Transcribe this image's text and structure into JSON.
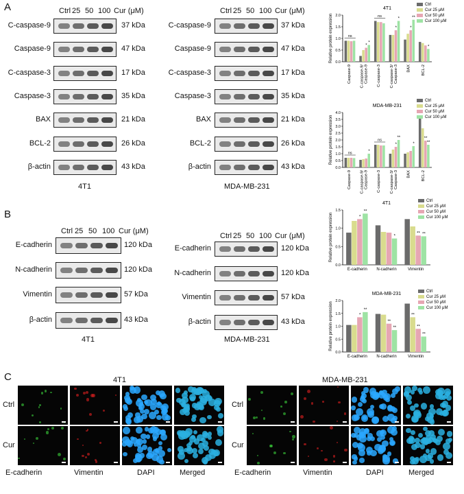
{
  "panels": {
    "A": "A",
    "B": "B",
    "C": "C"
  },
  "A": {
    "lanes_label": [
      "Ctrl",
      "25",
      "50",
      "100"
    ],
    "conc_label": "Cur (μM)",
    "left": {
      "cell_line": "4T1",
      "rows": [
        {
          "protein": "C-caspase-9",
          "kda": "37 kDa"
        },
        {
          "protein": "Caspase-9",
          "kda": "47 kDa"
        },
        {
          "protein": "C-caspase-3",
          "kda": "17 kDa"
        },
        {
          "protein": "Caspase-3",
          "kda": "35 kDa"
        },
        {
          "protein": "BAX",
          "kda": "21 kDa"
        },
        {
          "protein": "BCL-2",
          "kda": "26 kDa"
        },
        {
          "protein": "β-actin",
          "kda": "43 kDa"
        }
      ]
    },
    "right": {
      "cell_line": "MDA-MB-231",
      "rows": [
        {
          "protein": "C-caspase-9",
          "kda": "37 kDa"
        },
        {
          "protein": "Caspase-9",
          "kda": "47 kDa"
        },
        {
          "protein": "C-caspase-3",
          "kda": "17 kDa"
        },
        {
          "protein": "Caspase-3",
          "kda": "35 kDa"
        },
        {
          "protein": "BAX",
          "kda": "21 kDa"
        },
        {
          "protein": "BCL-2",
          "kda": "26 kDa"
        },
        {
          "protein": "β-actin",
          "kda": "43 kDa"
        }
      ]
    }
  },
  "B": {
    "lanes_label": [
      "Ctrl",
      "25",
      "50",
      "100"
    ],
    "conc_label": "Cur (μM)",
    "left": {
      "cell_line": "4T1",
      "rows": [
        {
          "protein": "E-cadherin",
          "kda": "120 kDa"
        },
        {
          "protein": "N-cadherin",
          "kda": "120 kDa"
        },
        {
          "protein": "Vimentin",
          "kda": "57 kDa"
        },
        {
          "protein": "β-actin",
          "kda": "43 kDa"
        }
      ]
    },
    "right": {
      "cell_line": "MDA-MB-231",
      "rows": [
        {
          "protein": "E-cadherin",
          "kda": "120 kDa"
        },
        {
          "protein": "N-cadherin",
          "kda": "120 kDa"
        },
        {
          "protein": "Vimentin",
          "kda": "57 kDa"
        },
        {
          "protein": "β-actin",
          "kda": "43 kDa"
        }
      ]
    }
  },
  "C": {
    "left_title": "4T1",
    "right_title": "MDA-MB-231",
    "row_labels": [
      "Ctrl",
      "Cur"
    ],
    "col_labels": [
      "E-cadherin",
      "Vimentin",
      "DAPI",
      "Merged"
    ]
  },
  "colors": {
    "ctrl": "#6b6b6b",
    "cur25": "#d9dc8e",
    "cur50": "#e6a6b3",
    "cur100": "#9ee3a4"
  },
  "chart_data": [
    {
      "type": "bar",
      "title": "4T1",
      "ylabel": "Relative protein expression",
      "ylim": [
        0,
        2.0
      ],
      "yticks": [
        "0.0",
        "0.5",
        "1.0",
        "1.5",
        "2.0"
      ],
      "categories": [
        "Caspase-9",
        "C-caspase-9/ Caspase-9",
        "C-caspase-3",
        "C-caspase-3/ Caspase-3",
        "BAX",
        "BCL-2"
      ],
      "legend": [
        "Ctrl",
        "Cur 25 μM",
        "Cur 50 μM",
        "Cur 100 μM"
      ],
      "series": [
        {
          "name": "Ctrl",
          "values": [
            0.9,
            0.25,
            1.75,
            1.15,
            0.95,
            0.85
          ]
        },
        {
          "name": "Cur 25 μM",
          "values": [
            0.9,
            0.5,
            1.7,
            1.15,
            1.2,
            0.8
          ]
        },
        {
          "name": "Cur 50 μM",
          "values": [
            0.88,
            0.6,
            1.7,
            1.35,
            1.35,
            0.7
          ]
        },
        {
          "name": "Cur 100 μM",
          "values": [
            0.9,
            0.72,
            1.65,
            1.75,
            1.8,
            0.55
          ]
        }
      ],
      "annotations": [
        {
          "category": 0,
          "text": "ns"
        },
        {
          "category": 1,
          "series": 2,
          "text": "*"
        },
        {
          "category": 1,
          "series": 3,
          "text": "*"
        },
        {
          "category": 2,
          "text": "ns"
        },
        {
          "category": 3,
          "series": 2,
          "text": "*"
        },
        {
          "category": 3,
          "series": 3,
          "text": "*"
        },
        {
          "category": 4,
          "series": 2,
          "text": "*"
        },
        {
          "category": 4,
          "series": 3,
          "text": "**"
        },
        {
          "category": 5,
          "series": 3,
          "text": "*"
        }
      ]
    },
    {
      "type": "bar",
      "title": "MDA-MB-231",
      "ylabel": "Relative protein expression",
      "ylim": [
        0,
        4.0
      ],
      "yticks": [
        "0.0",
        "0.5",
        "1.0",
        "1.5",
        "2.0",
        "2.5",
        "3.0",
        "3.5",
        "4.0"
      ],
      "categories": [
        "Caspase-9",
        "C-caspase-9/ Caspase-9",
        "C-caspase-3",
        "C-caspase-3/ Caspase-3",
        "BAX",
        "BCL-2"
      ],
      "legend": [
        "Ctrl",
        "Cur 25 μM",
        "Cur 50 μM",
        "Cur 100 μM"
      ],
      "series": [
        {
          "name": "Ctrl",
          "values": [
            0.7,
            0.55,
            1.65,
            1.0,
            1.0,
            3.8
          ]
        },
        {
          "name": "Cur 25 μM",
          "values": [
            0.7,
            0.6,
            1.65,
            1.3,
            1.1,
            2.85
          ]
        },
        {
          "name": "Cur 50 μM",
          "values": [
            0.7,
            0.65,
            1.6,
            1.5,
            1.2,
            1.95
          ]
        },
        {
          "name": "Cur 100 μM",
          "values": [
            0.68,
            1.0,
            1.6,
            2.0,
            1.55,
            1.65
          ]
        }
      ],
      "annotations": [
        {
          "category": 0,
          "text": "ns"
        },
        {
          "category": 1,
          "series": 3,
          "text": "*"
        },
        {
          "category": 2,
          "text": "ns"
        },
        {
          "category": 3,
          "series": 2,
          "text": "*"
        },
        {
          "category": 3,
          "series": 3,
          "text": "**"
        },
        {
          "category": 4,
          "series": 3,
          "text": "*"
        },
        {
          "category": 5,
          "series": 2,
          "text": "**"
        },
        {
          "category": 5,
          "series": 3,
          "text": "**"
        }
      ]
    },
    {
      "type": "bar",
      "title": "4T1",
      "ylabel": "Relative protein expression",
      "ylim": [
        0,
        1.5
      ],
      "yticks": [
        "0.0",
        "0.5",
        "1.0",
        "1.5"
      ],
      "categories": [
        "E-cadherin",
        "N-cadherin",
        "Vimentin"
      ],
      "legend": [
        "Ctrl",
        "Cur 25 μM",
        "Cur 50 μM",
        "Cur 100 μM"
      ],
      "series": [
        {
          "name": "Ctrl",
          "values": [
            0.88,
            1.08,
            1.25
          ]
        },
        {
          "name": "Cur 25 μM",
          "values": [
            1.2,
            0.9,
            1.05
          ]
        },
        {
          "name": "Cur 50 μM",
          "values": [
            1.25,
            0.88,
            0.8
          ]
        },
        {
          "name": "Cur 100 μM",
          "values": [
            1.4,
            0.72,
            0.78
          ]
        }
      ],
      "annotations": [
        {
          "category": 0,
          "series": 2,
          "text": "*"
        },
        {
          "category": 0,
          "series": 3,
          "text": "**"
        },
        {
          "category": 1,
          "series": 3,
          "text": "*"
        },
        {
          "category": 2,
          "series": 2,
          "text": "**"
        },
        {
          "category": 2,
          "series": 3,
          "text": "**"
        }
      ]
    },
    {
      "type": "bar",
      "title": "MDA-MB-231",
      "ylabel": "Relative protein expression",
      "ylim": [
        0,
        2.0
      ],
      "yticks": [
        "0.0",
        "0.5",
        "1.0",
        "1.5",
        "2.0"
      ],
      "categories": [
        "E-cadherin",
        "N-cadherin",
        "Vimentin"
      ],
      "legend": [
        "Ctrl",
        "Cur 25 μM",
        "Cur 50 μM",
        "Cur 100 μM"
      ],
      "series": [
        {
          "name": "Ctrl",
          "values": [
            1.05,
            1.48,
            1.88
          ]
        },
        {
          "name": "Cur 25 μM",
          "values": [
            1.05,
            1.45,
            1.35
          ]
        },
        {
          "name": "Cur 50 μM",
          "values": [
            1.35,
            1.1,
            0.9
          ]
        },
        {
          "name": "Cur 100 μM",
          "values": [
            1.55,
            0.85,
            0.6
          ]
        }
      ],
      "annotations": [
        {
          "category": 0,
          "series": 2,
          "text": "*"
        },
        {
          "category": 0,
          "series": 3,
          "text": "**"
        },
        {
          "category": 1,
          "series": 2,
          "text": "**"
        },
        {
          "category": 1,
          "series": 3,
          "text": "**"
        },
        {
          "category": 2,
          "series": 1,
          "text": "**"
        },
        {
          "category": 2,
          "series": 2,
          "text": "**"
        },
        {
          "category": 2,
          "series": 3,
          "text": "**"
        }
      ]
    }
  ]
}
